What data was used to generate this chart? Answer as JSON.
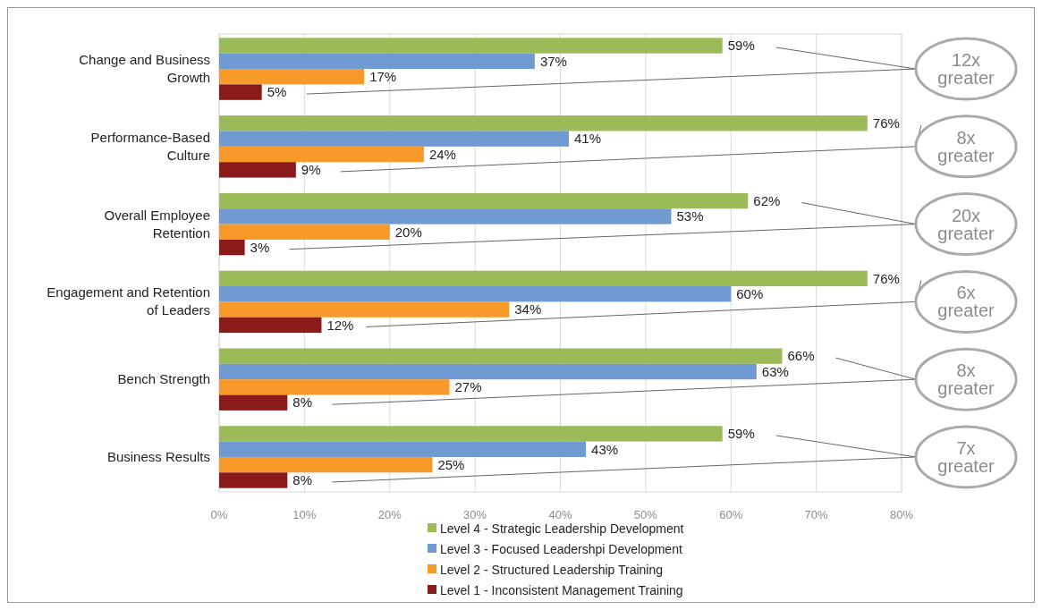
{
  "chart_data": {
    "type": "bar",
    "orientation": "horizontal",
    "categories": [
      "Change and Business Growth",
      "Performance-Based Culture",
      "Overall Employee Retention",
      "Engagement and Retention of Leaders",
      "Bench Strength",
      "Business Results"
    ],
    "series": [
      {
        "name": "Level 4 - Strategic Leadership Development",
        "color": "#9bbb59",
        "values": [
          59,
          76,
          62,
          76,
          66,
          59
        ],
        "value_labels": [
          "59%",
          "76%",
          "62%",
          "76%",
          "66%",
          "59%"
        ]
      },
      {
        "name": "Level 3 - Focused Leadershpi Development",
        "color": "#6f9bd2",
        "values": [
          37,
          41,
          53,
          60,
          63,
          43
        ],
        "value_labels": [
          "37%",
          "41%",
          "53%",
          "60%",
          "63%",
          "43%"
        ]
      },
      {
        "name": "Level 2 - Structured Leadership Training",
        "color": "#f79a2a",
        "values": [
          17,
          24,
          20,
          34,
          27,
          25
        ],
        "value_labels": [
          "17%",
          "24%",
          "20%",
          "34%",
          "27%",
          "25%"
        ]
      },
      {
        "name": "Level 1 - Inconsistent Management Training",
        "color": "#8b1a1a",
        "values": [
          5,
          9,
          3,
          12,
          8,
          8
        ],
        "value_labels": [
          "5%",
          "9%",
          "3%",
          "12%",
          "8%",
          "8%"
        ]
      }
    ],
    "xlim": [
      0,
      80
    ],
    "xticks": [
      {
        "value": 0,
        "label": "0%"
      },
      {
        "value": 10,
        "label": "10%"
      },
      {
        "value": 20,
        "label": "20%"
      },
      {
        "value": 30,
        "label": "30%"
      },
      {
        "value": 40,
        "label": "40%"
      },
      {
        "value": 50,
        "label": "50%"
      },
      {
        "value": 60,
        "label": "60%"
      },
      {
        "value": 70,
        "label": "70%"
      },
      {
        "value": 80,
        "label": "80%"
      }
    ],
    "grid": "x",
    "legend": "bottom",
    "annotations": [
      "12x greater",
      "8x greater",
      "20x greater",
      "6x greater",
      "8x greater",
      "7x greater"
    ]
  }
}
